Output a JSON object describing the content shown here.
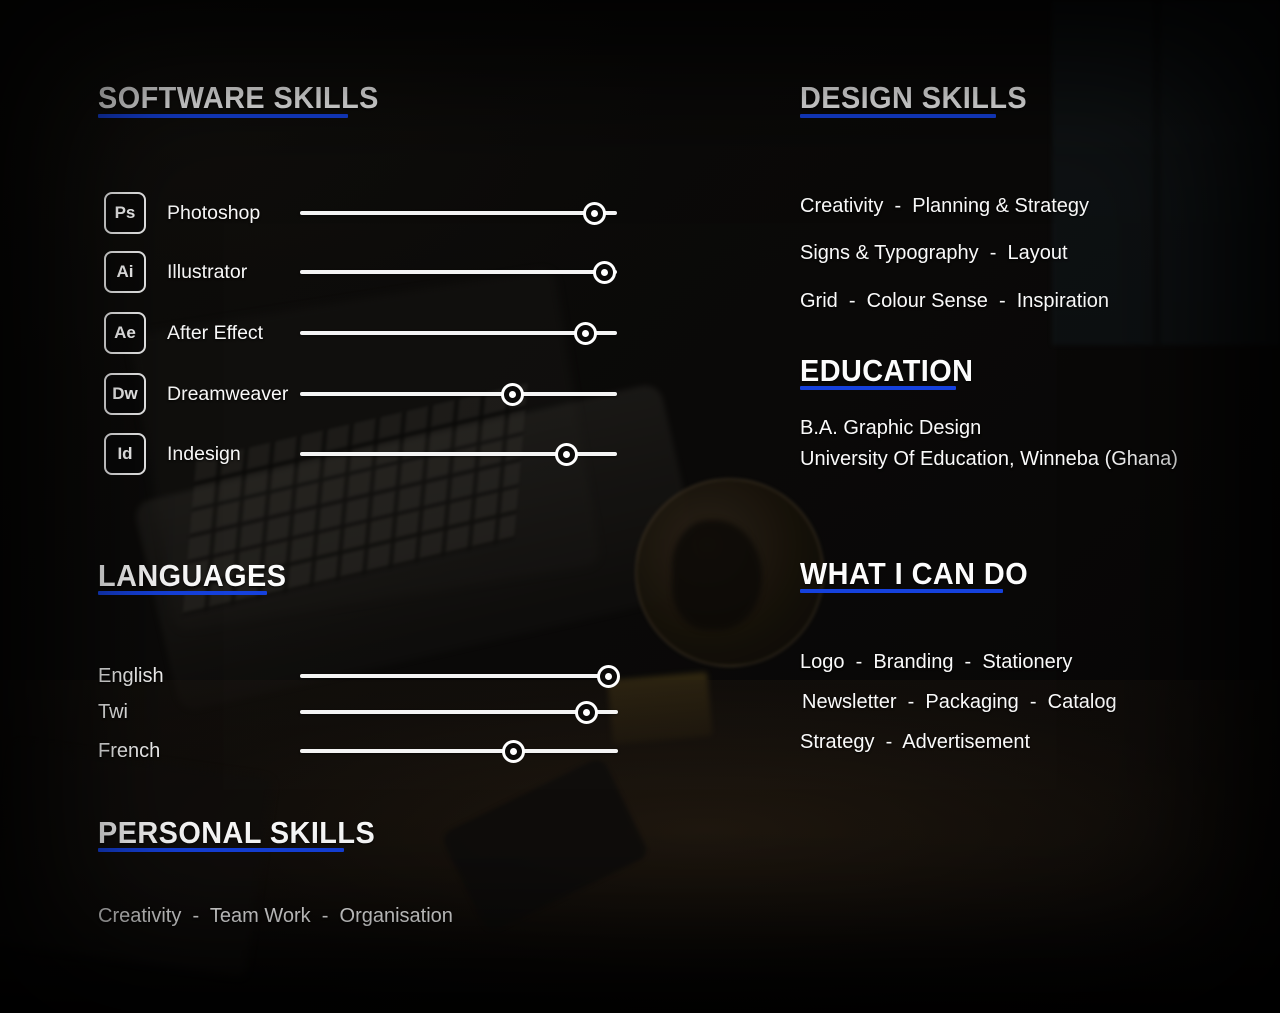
{
  "theme": {
    "accent_blue": "#1541dd",
    "text_color": "#ffffff",
    "background": "#0a0908",
    "track_color": "#f4f4f4"
  },
  "software_skills": {
    "title": "SOFTWARE SKILLS",
    "items": [
      {
        "abbr": "Ps",
        "label": "Photoshop",
        "level": 93
      },
      {
        "abbr": "Ai",
        "label": "Illustrator",
        "level": 96
      },
      {
        "abbr": "Ae",
        "label": "After Effect",
        "level": 90
      },
      {
        "abbr": "Dw",
        "label": "Dreamweaver",
        "level": 67
      },
      {
        "abbr": "Id",
        "label": "Indesign",
        "level": 84
      }
    ]
  },
  "design_skills": {
    "title": "DESIGN SKILLS",
    "lines": [
      "Creativity  -  Planning & Strategy",
      "Signs & Typography  -  Layout",
      "Grid  -  Colour Sense  -  Inspiration"
    ]
  },
  "education": {
    "title": "EDUCATION",
    "lines": [
      "B.A. Graphic Design",
      "University Of Education, Winneba (Ghana)"
    ]
  },
  "languages": {
    "title": "LANGUAGES",
    "items": [
      {
        "label": "English",
        "level": 97
      },
      {
        "label": "Twi",
        "level": 90
      },
      {
        "label": "French",
        "level": 67
      }
    ]
  },
  "what_i_can_do": {
    "title": "WHAT I CAN DO",
    "lines": [
      "Logo  -  Branding  -  Stationery",
      "Newsletter  -  Packaging  -  Catalog",
      "Strategy  -  Advertisement"
    ]
  },
  "personal_skills": {
    "title": "PERSONAL SKILLS",
    "lines": [
      "Creativity  -  Team Work  -  Organisation"
    ]
  }
}
